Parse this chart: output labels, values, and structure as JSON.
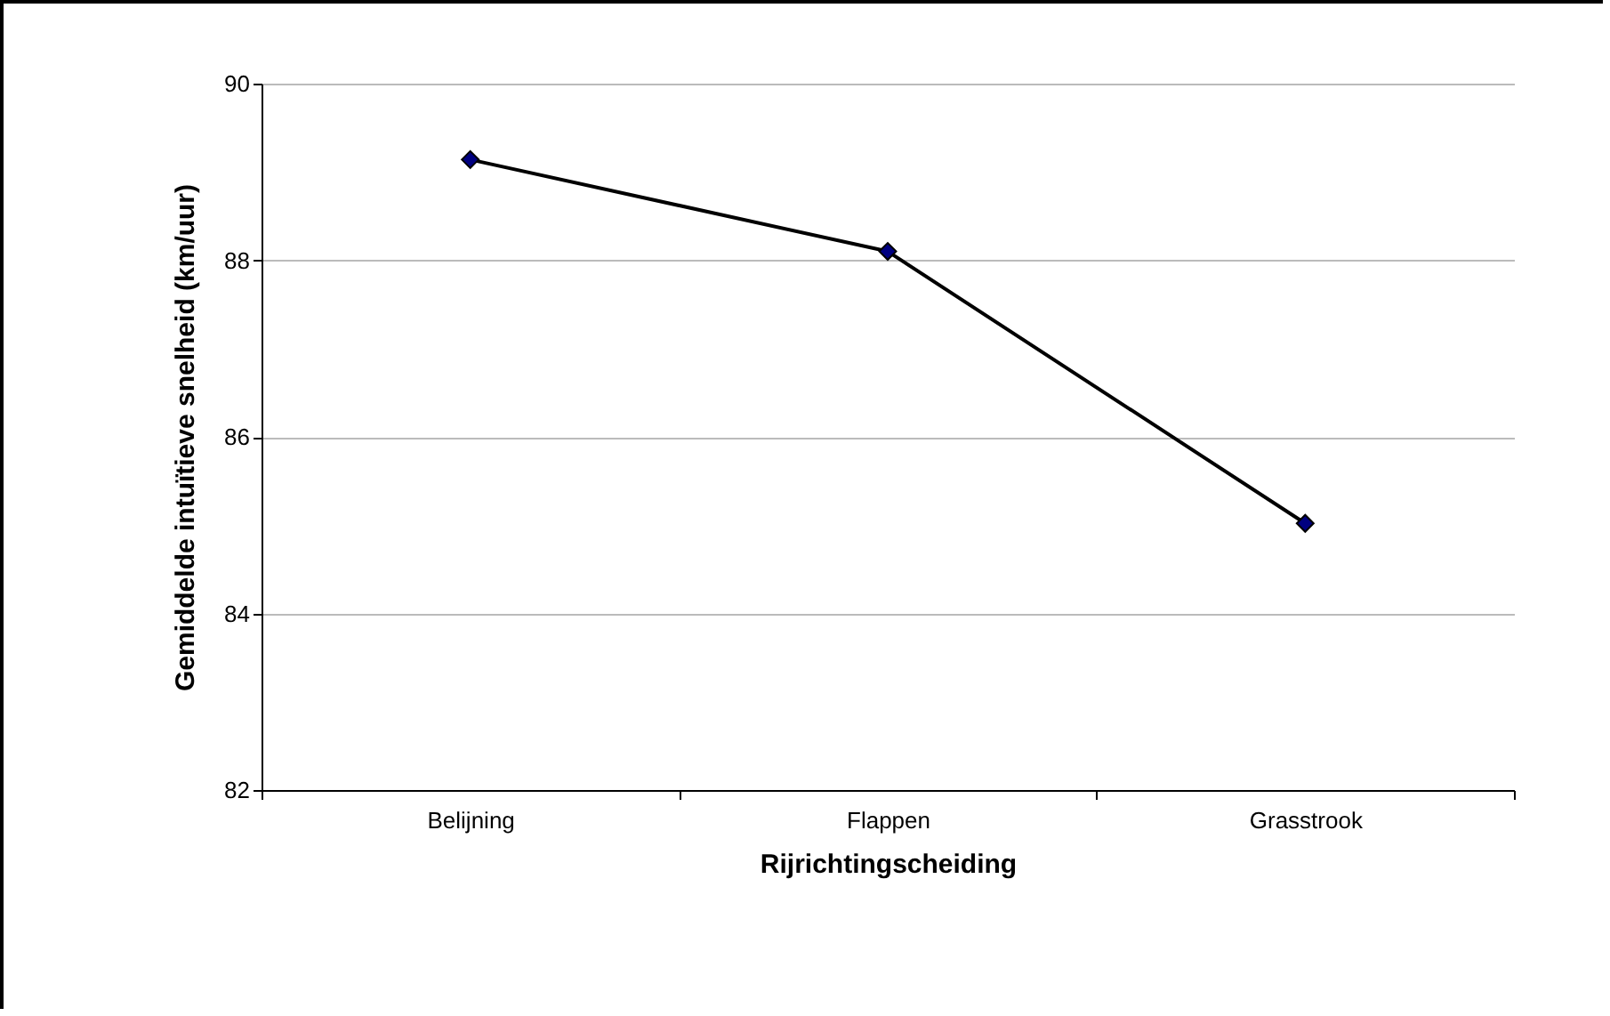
{
  "chart_data": {
    "type": "line",
    "xlabel": "Rijrichtingscheiding",
    "ylabel": "Gemiddelde intuïtieve snelheid (km/uur)",
    "categories": [
      "Belijning",
      "Flappen",
      "Grasstrook"
    ],
    "series": [
      {
        "color": "#000000",
        "values": [
          89.14,
          88.1,
          85.02
        ]
      }
    ],
    "ylim": [
      82,
      90
    ],
    "yticks": [
      82,
      84,
      86,
      88,
      90
    ],
    "grid": "y",
    "legend": false,
    "marker": "diamond",
    "line_style": "solid"
  }
}
